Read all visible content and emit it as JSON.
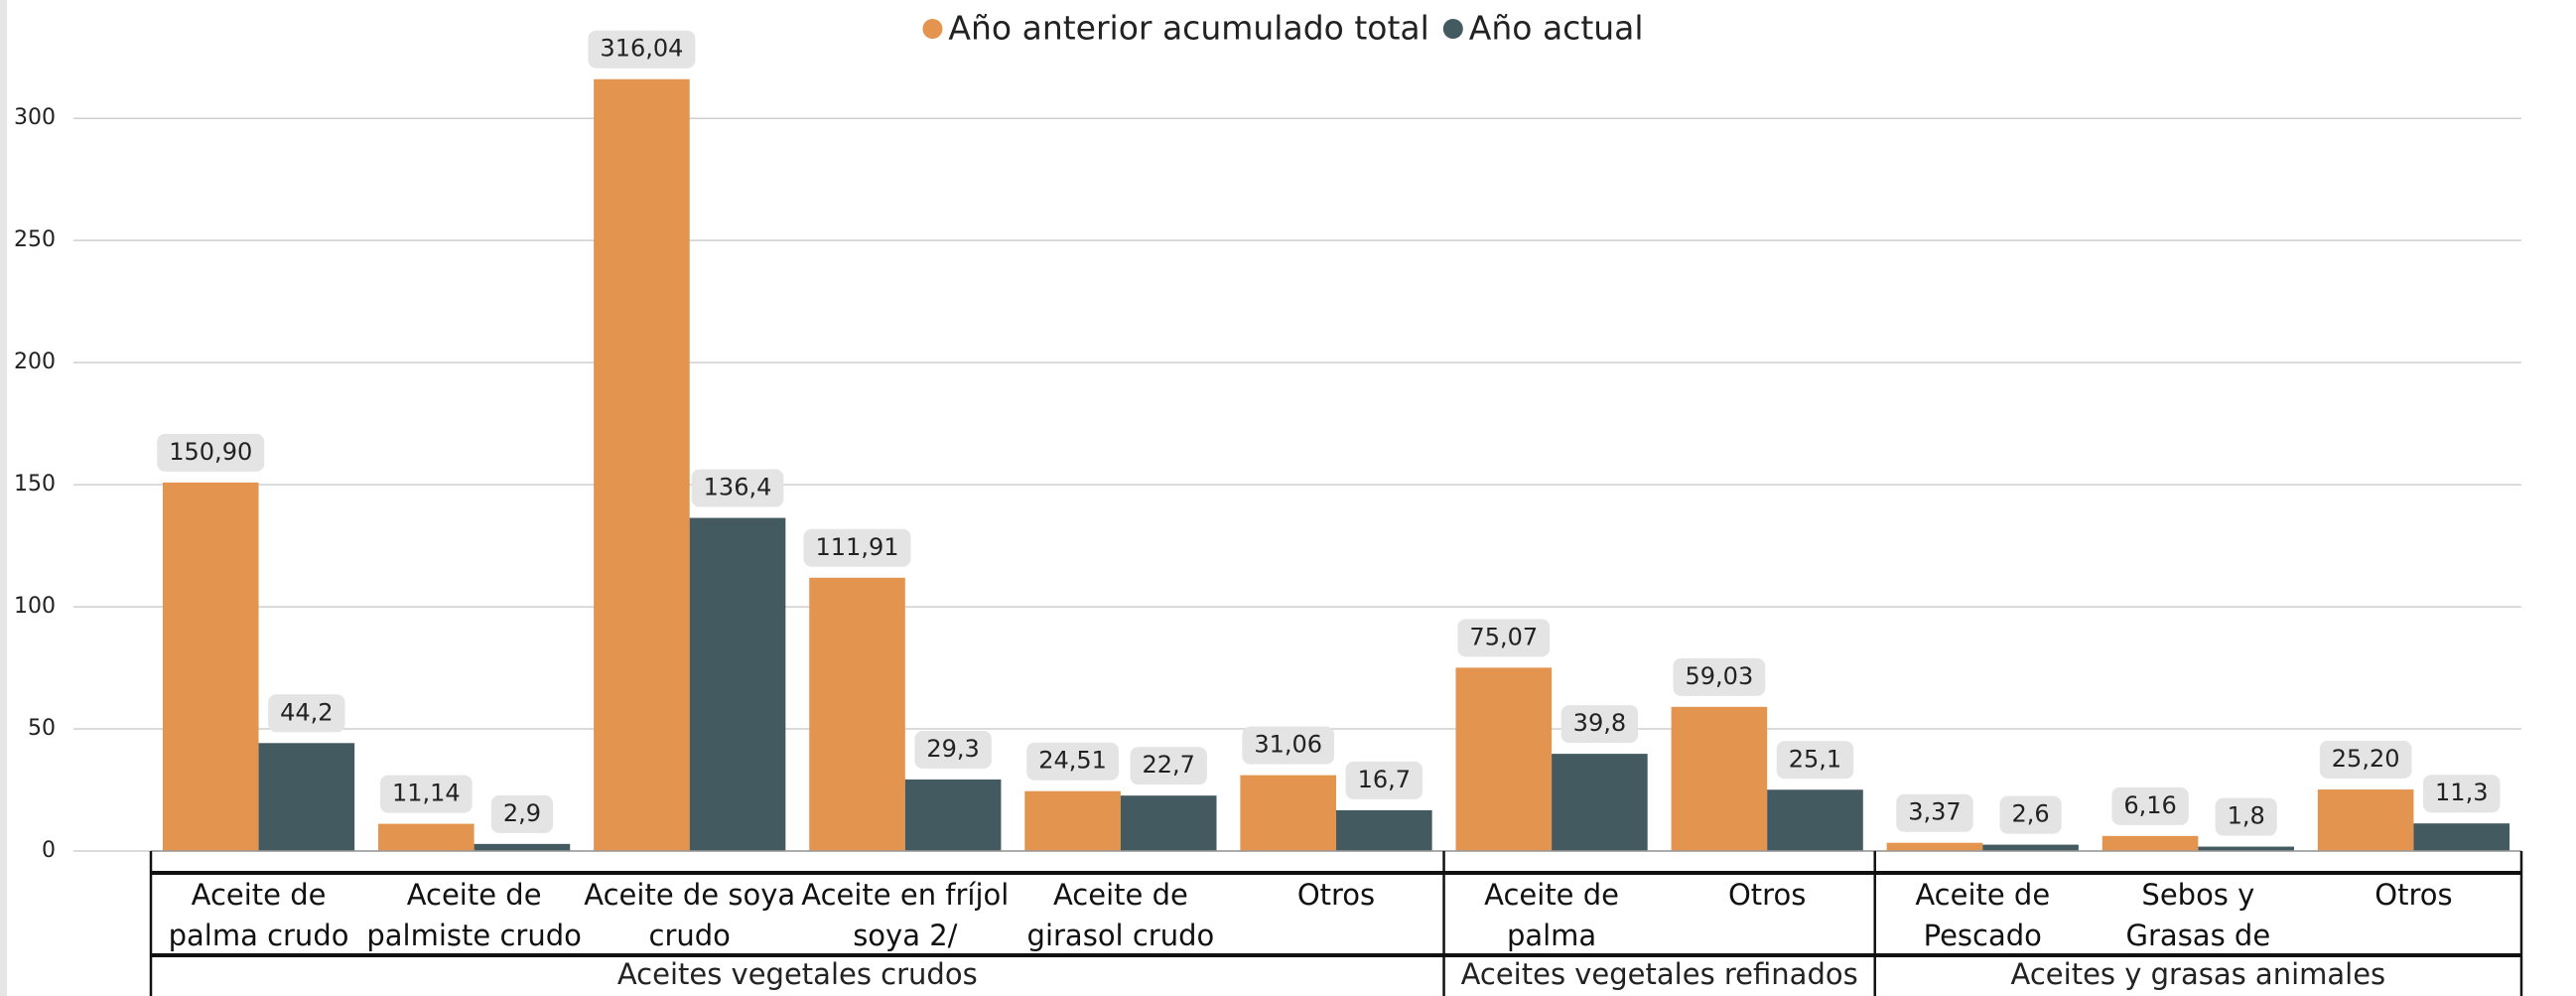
{
  "chart_data": {
    "type": "bar",
    "groups": [
      {
        "name": "Aceites vegetales crudos",
        "categories": [
          "Aceite de palma crudo",
          "Aceite de palmiste crudo",
          "Aceite de soya crudo",
          "Aceite en fríjol soya 2/",
          "Aceite de girasol crudo",
          "Otros"
        ]
      },
      {
        "name": "Aceites vegetales refinados",
        "categories": [
          "Aceite de palma refinado",
          "Otros"
        ]
      },
      {
        "name": "Aceites y grasas animales",
        "categories": [
          "Aceite de Pescado",
          "Sebos y Grasas de Desperdicio",
          "Otros"
        ]
      }
    ],
    "series": [
      {
        "name": "Año anterior acumulado total",
        "color": "#e39550",
        "values": [
          150.9,
          11.14,
          316.04,
          111.91,
          24.51,
          31.06,
          75.07,
          59.03,
          3.37,
          6.16,
          25.2
        ],
        "value_labels": [
          "150,90",
          "11,14",
          "316,04",
          "111,91",
          "24,51",
          "31,06",
          "75,07",
          "59,03",
          "3,37",
          "6,16",
          "25,20"
        ]
      },
      {
        "name": "Año actual",
        "color": "#435a60",
        "values": [
          44.2,
          2.9,
          136.4,
          29.3,
          22.7,
          16.7,
          39.8,
          25.1,
          2.6,
          1.8,
          11.3
        ],
        "value_labels": [
          "44,2",
          "2,9",
          "136,4",
          "29,3",
          "22,7",
          "16,7",
          "39,8",
          "25,1",
          "2,6",
          "1,8",
          "11,3"
        ]
      }
    ],
    "ylim": [
      0,
      320
    ],
    "yticks": [
      0,
      50,
      100,
      150,
      200,
      250,
      300
    ],
    "grid": true,
    "legend": "top"
  }
}
